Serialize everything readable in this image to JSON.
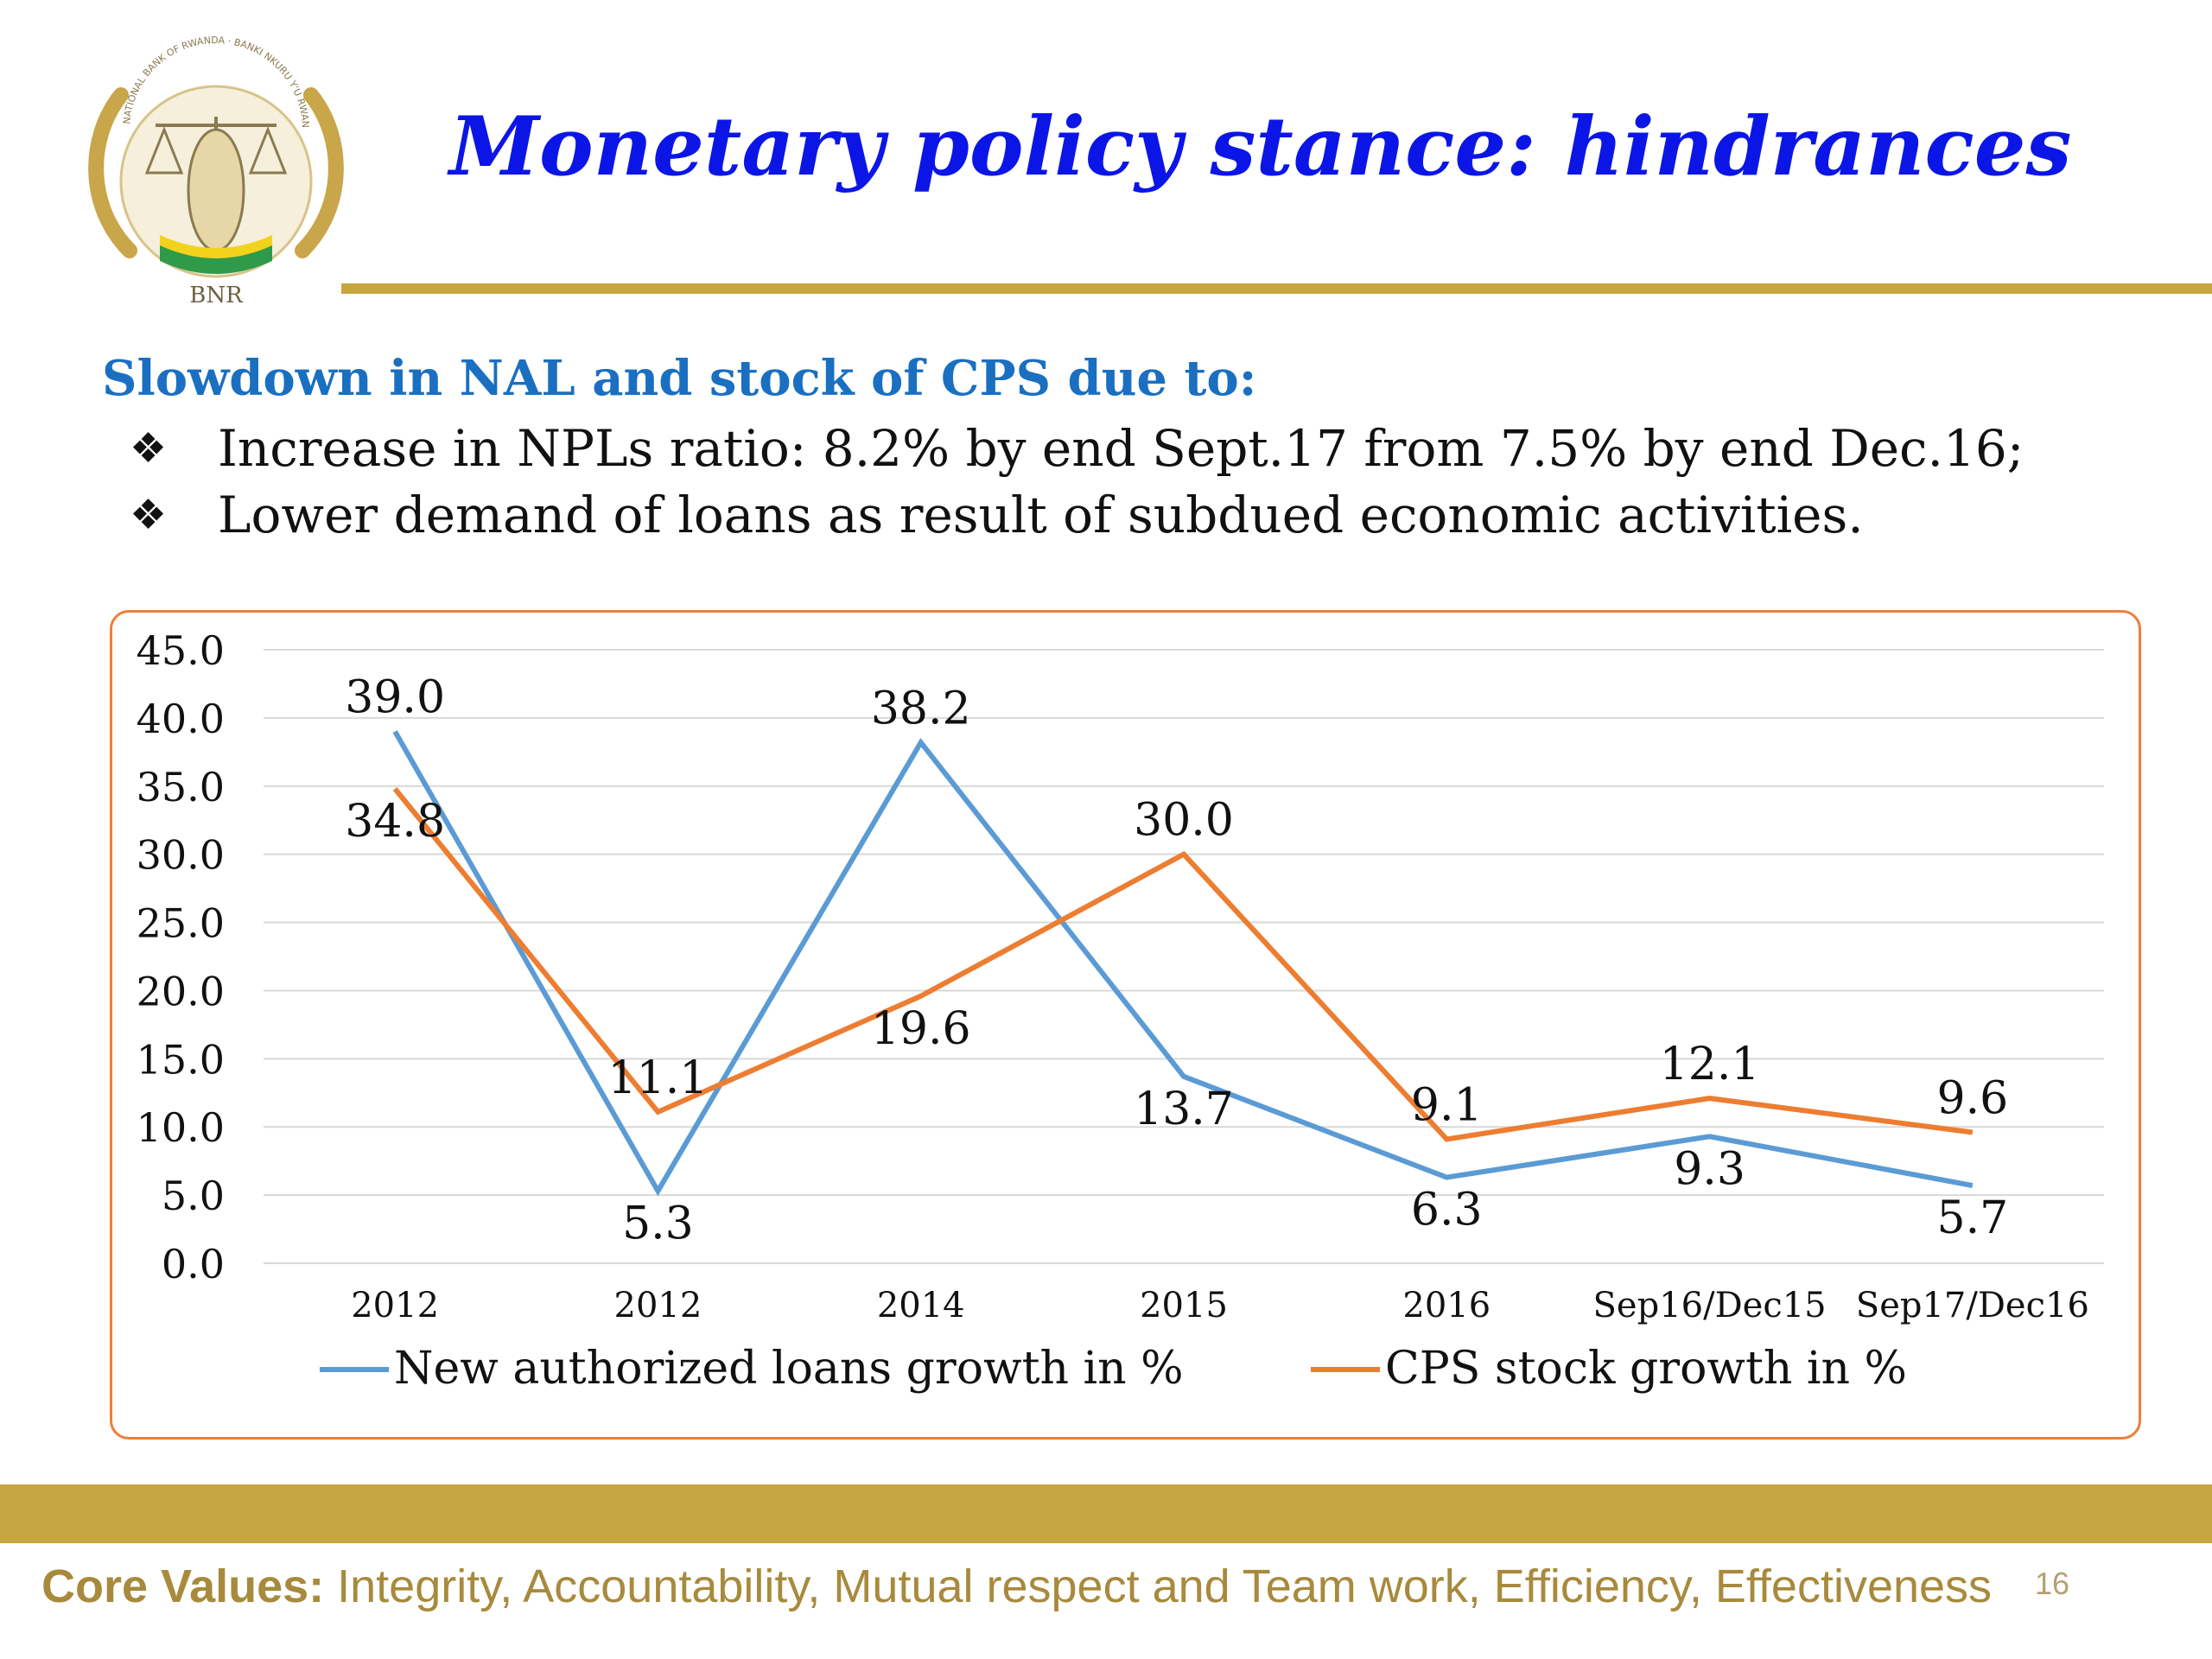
{
  "logo": {
    "label": "BNR",
    "motto_text": "NATIONAL BANK OF RWANDA · BANKI NKURU Y'U RWANDA"
  },
  "title": "Monetary policy stance: hindrances",
  "subtitle": "Slowdown in NAL and stock of CPS due to:",
  "bullets": [
    {
      "marker": "❖",
      "text": "Increase in NPLs ratio: 8.2% by end Sept.17 from 7.5% by end Dec.16;"
    },
    {
      "marker": "❖",
      "text": "Lower demand of loans as result of subdued economic activities."
    }
  ],
  "chart_data": {
    "type": "line",
    "title": "",
    "xlabel": "",
    "ylabel": "",
    "categories": [
      "2012",
      "2012",
      "2014",
      "2015",
      "2016",
      "Sep16/Dec15",
      "Sep17/Dec16"
    ],
    "series": [
      {
        "name": "New authorized loans growth in %",
        "color": "#5b9bd5",
        "values": [
          39.0,
          5.3,
          38.2,
          13.7,
          6.3,
          9.3,
          5.7
        ],
        "labels": [
          "39.0",
          "5.3",
          "38.2",
          "13.7",
          "6.3",
          "9.3",
          "5.7"
        ]
      },
      {
        "name": "CPS stock growth in %",
        "color": "#ed7d31",
        "values": [
          34.8,
          11.1,
          19.6,
          30.0,
          9.1,
          12.1,
          9.6
        ],
        "labels": [
          "34.8",
          "11.1",
          "19.6",
          "30.0",
          "9.1",
          "12.1",
          "9.6"
        ]
      }
    ],
    "ylim": [
      0,
      45
    ],
    "yticks": [
      "0.0",
      "5.0",
      "10.0",
      "15.0",
      "20.0",
      "25.0",
      "30.0",
      "35.0",
      "40.0",
      "45.0"
    ],
    "grid": true,
    "legend": "bottom"
  },
  "footer": {
    "label": "Core Values:",
    "text": " Integrity, Accountability, Mutual respect and Team work, Efficiency, Effectiveness",
    "page_number": "16"
  }
}
